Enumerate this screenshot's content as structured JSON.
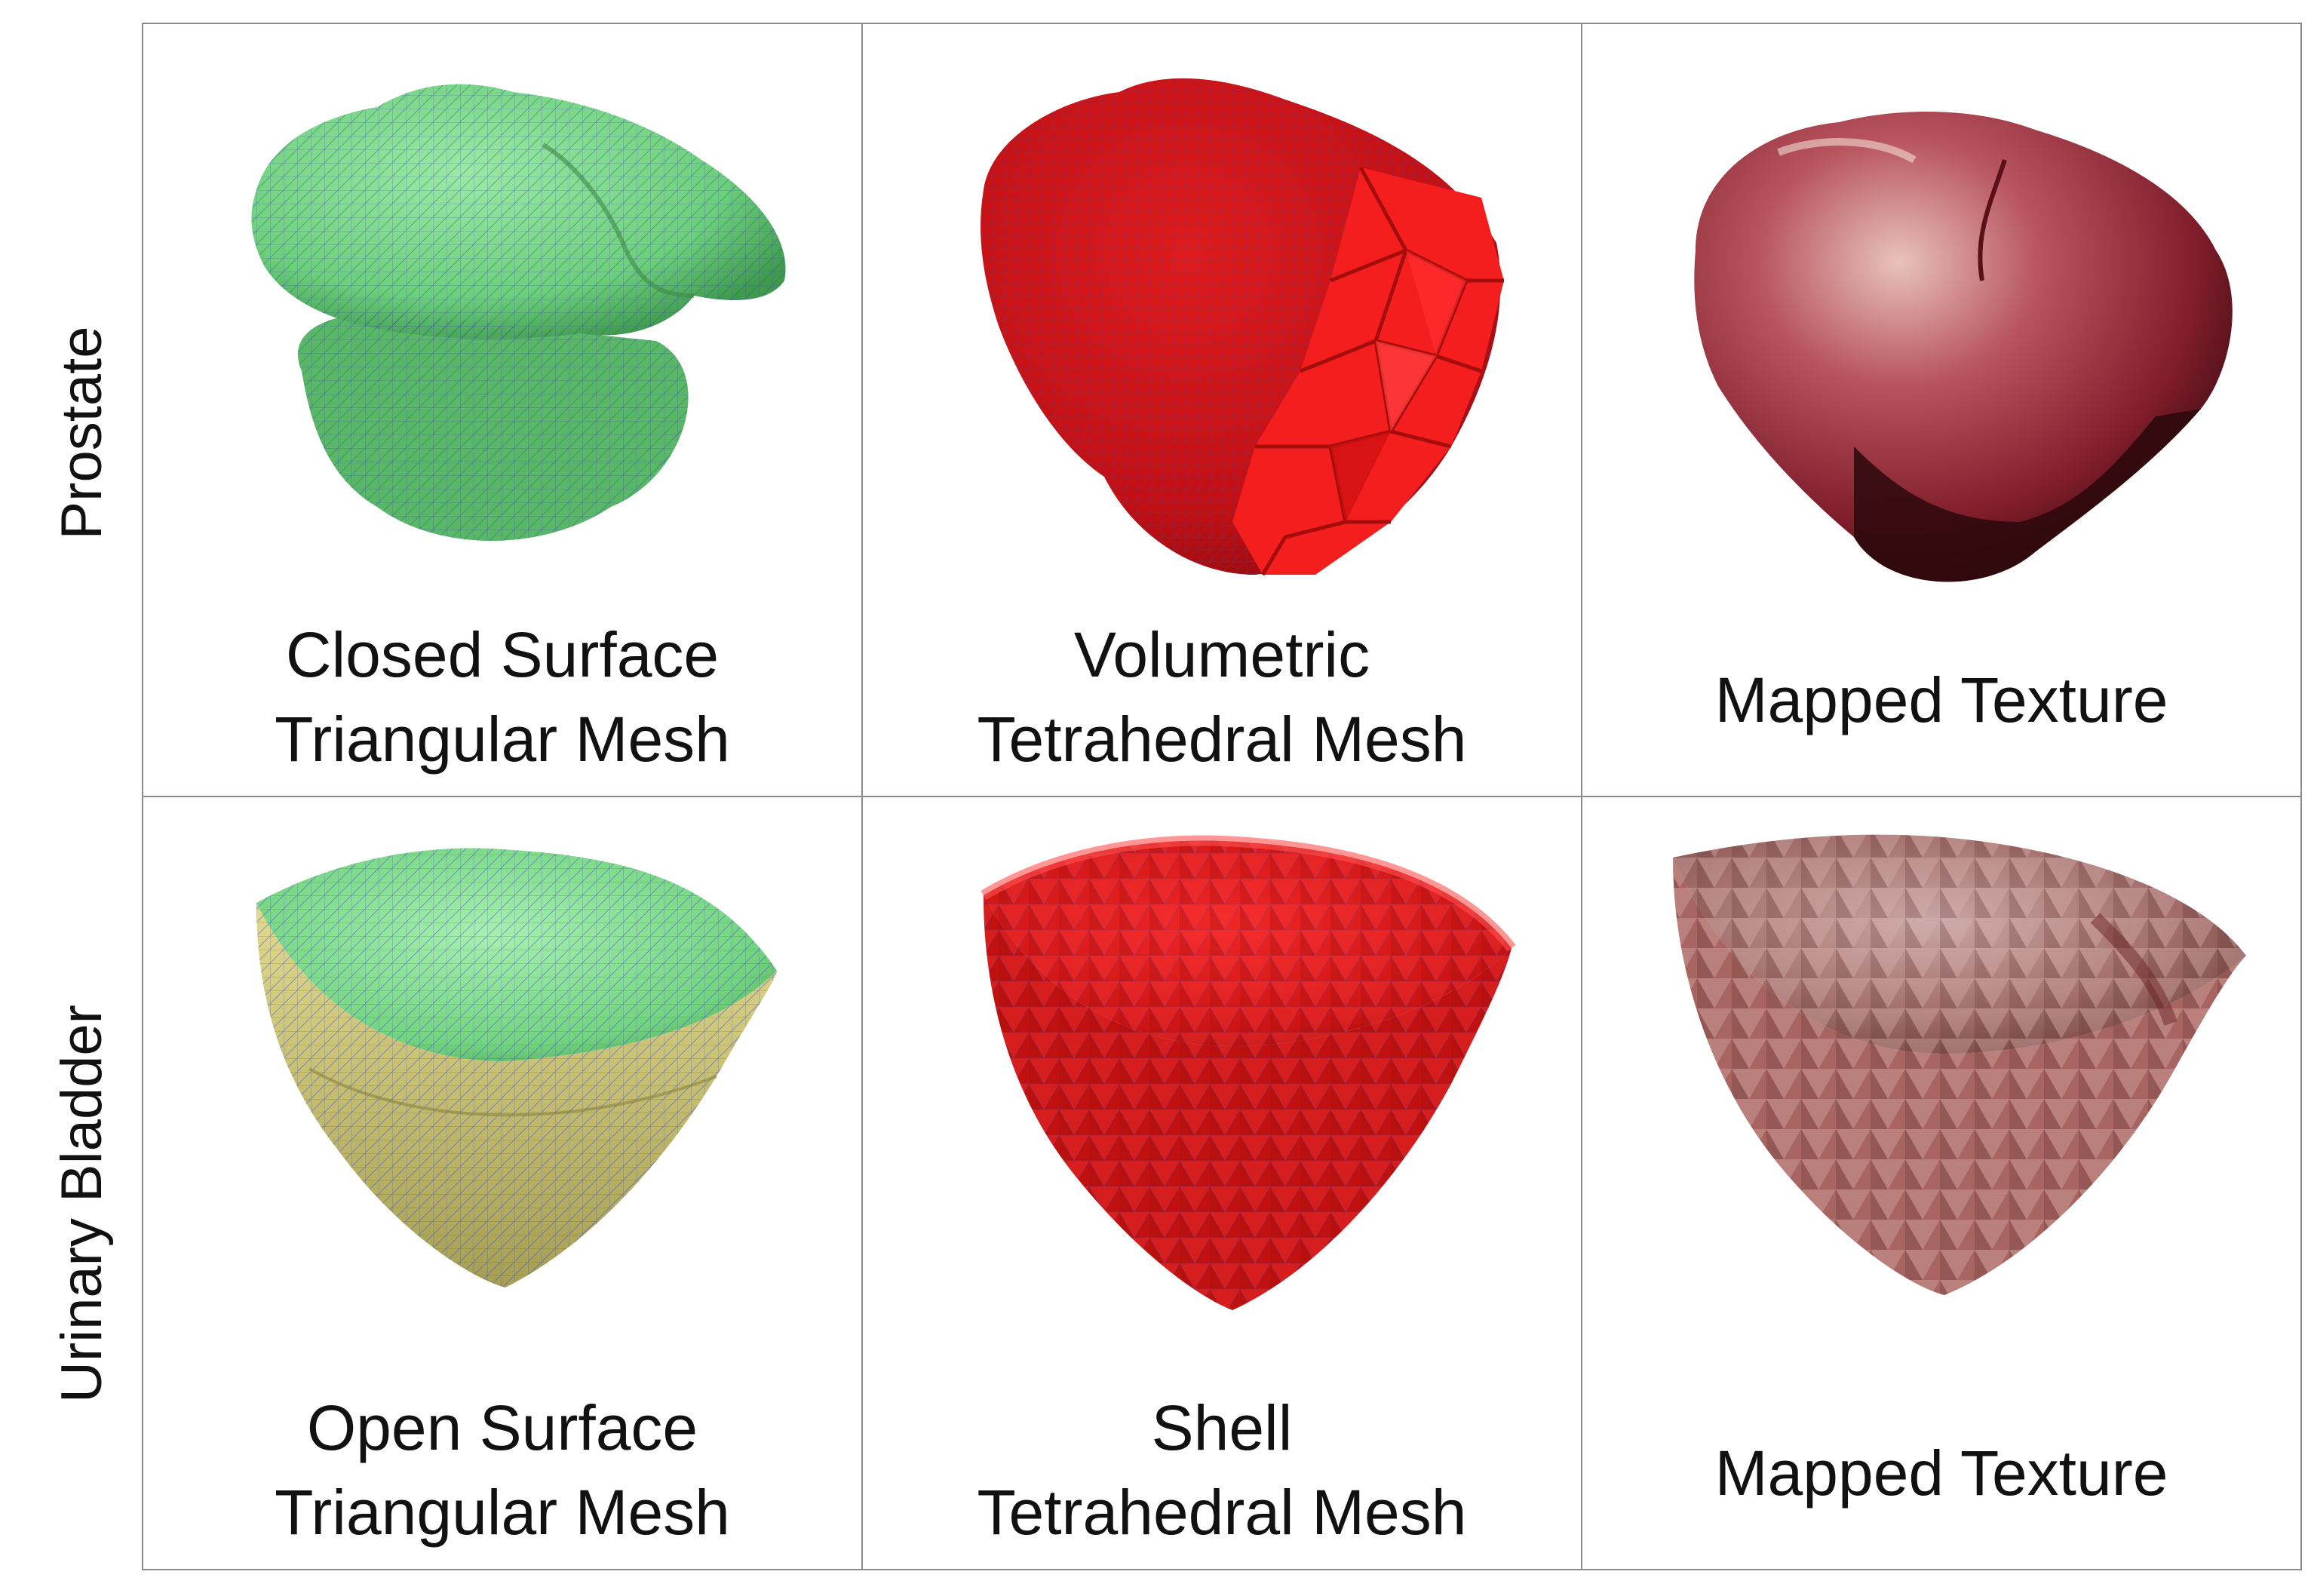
{
  "rows": [
    {
      "label": "Prostate",
      "cells": [
        {
          "caption": [
            "Closed Surface",
            "Triangular Mesh"
          ]
        },
        {
          "caption": [
            "Volumetric",
            "Tetrahedral Mesh"
          ]
        },
        {
          "caption": [
            "Mapped Texture"
          ]
        }
      ]
    },
    {
      "label": "Urinary Bladder",
      "cells": [
        {
          "caption": [
            "Open Surface",
            "Triangular Mesh"
          ]
        },
        {
          "caption": [
            "Shell",
            "Tetrahedral Mesh"
          ]
        },
        {
          "caption": [
            "Mapped Texture"
          ]
        }
      ]
    }
  ],
  "colors": {
    "surface_green": "#7ed98a",
    "surface_olive": "#cfc776",
    "tetra_red": "#e51414",
    "tissue_red": "#8b2030",
    "tissue_pink": "#b87a78",
    "mesh_edges": "#3b48b5",
    "grid_border": "#8a8a8a"
  }
}
